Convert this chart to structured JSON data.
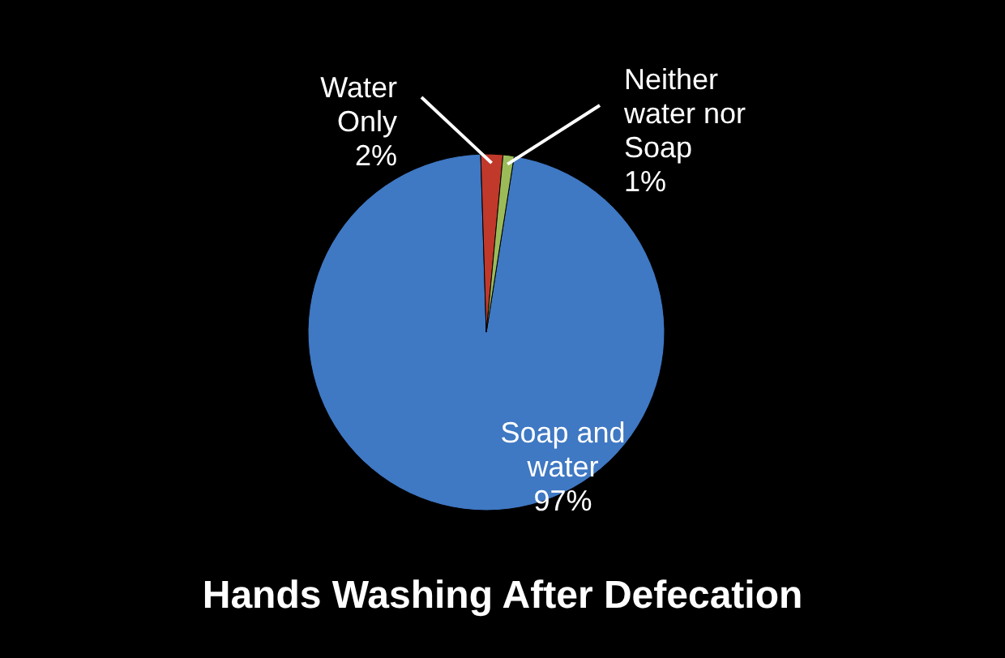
{
  "chart_data": {
    "type": "pie",
    "title": "Hands Washing After Defecation",
    "categories": [
      "Soap and water",
      "Water Only",
      "Neither water nor Soap"
    ],
    "values": [
      97,
      2,
      1
    ],
    "colors": [
      "#3f78c3",
      "#c0392b",
      "#9bbb59"
    ],
    "data_labels": true,
    "value_labels": [
      "97%",
      "2%",
      "1%"
    ],
    "legend": false
  }
}
